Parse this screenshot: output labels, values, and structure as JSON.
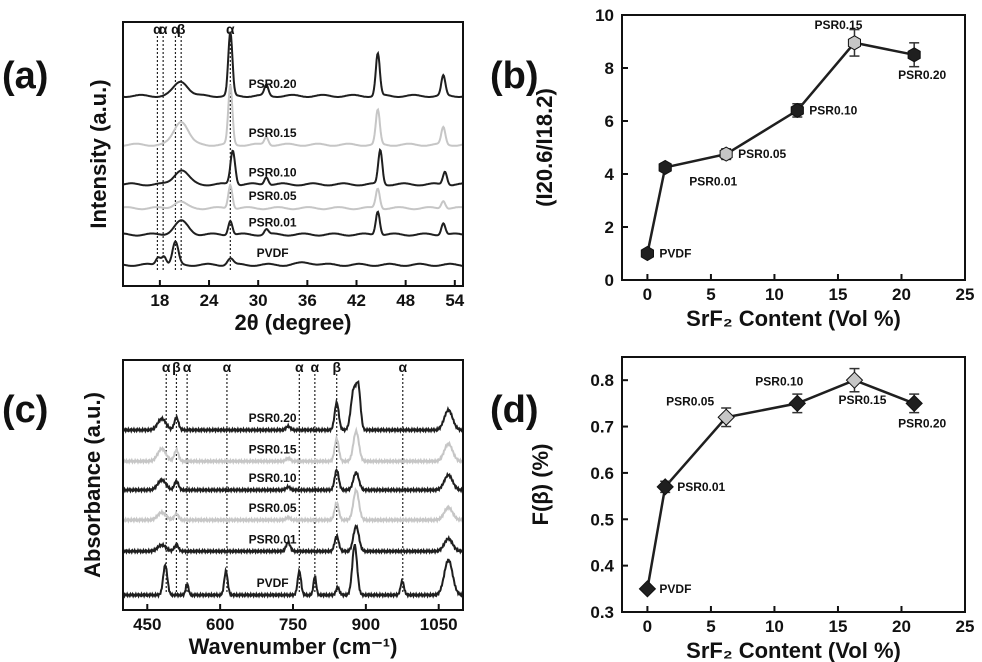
{
  "figure": {
    "panels": [
      {
        "id": "a",
        "label": "(a)"
      },
      {
        "id": "b",
        "label": "(b)"
      },
      {
        "id": "c",
        "label": "(c)"
      },
      {
        "id": "d",
        "label": "(d)"
      }
    ]
  },
  "colors": {
    "dark": "#1f1f1f",
    "light": "#c6c6c6",
    "axis": "#111111"
  },
  "chart_data": [
    {
      "id": "a",
      "type": "line",
      "title": "",
      "xlabel": "2θ (degree)",
      "ylabel": "Intensity (a.u.)",
      "xlim": [
        13.5,
        55
      ],
      "ylim": [
        0,
        10
      ],
      "x_ticks": [
        18,
        24,
        30,
        36,
        42,
        48,
        54
      ],
      "x_tick_labels": [
        "18",
        "24",
        "30",
        "36",
        "42",
        "48",
        "54"
      ],
      "series": [
        {
          "name": "PSR0.20",
          "color": "dark",
          "baseline": 7.2,
          "peaks": [
            [
              20.6,
              0.55,
              1.2
            ],
            [
              26.6,
              2.4,
              0.35
            ],
            [
              31.0,
              0.4,
              0.35
            ],
            [
              44.6,
              1.6,
              0.35
            ],
            [
              52.6,
              0.75,
              0.35
            ]
          ]
        },
        {
          "name": "PSR0.15",
          "color": "light",
          "baseline": 5.35,
          "peaks": [
            [
              20.6,
              0.9,
              1.2
            ],
            [
              26.6,
              2.25,
              0.35
            ],
            [
              31.0,
              0.3,
              0.35
            ],
            [
              44.6,
              1.3,
              0.35
            ],
            [
              52.6,
              0.65,
              0.35
            ]
          ]
        },
        {
          "name": "PSR0.10",
          "color": "dark",
          "baseline": 3.85,
          "peaks": [
            [
              20.6,
              0.55,
              1.2
            ],
            [
              26.9,
              1.3,
              0.4
            ],
            [
              31.0,
              0.3,
              0.35
            ],
            [
              44.9,
              1.3,
              0.35
            ],
            [
              52.8,
              0.5,
              0.35
            ]
          ]
        },
        {
          "name": "PSR0.05",
          "color": "light",
          "baseline": 2.95,
          "peaks": [
            [
              20.4,
              0.25,
              1.0
            ],
            [
              26.6,
              0.9,
              0.35
            ],
            [
              44.6,
              0.75,
              0.35
            ],
            [
              52.6,
              0.3,
              0.35
            ]
          ]
        },
        {
          "name": "PSR0.01",
          "color": "dark",
          "baseline": 1.95,
          "peaks": [
            [
              20.6,
              0.5,
              1.2
            ],
            [
              26.6,
              0.55,
              0.35
            ],
            [
              31.0,
              0.2,
              0.35
            ],
            [
              44.6,
              0.9,
              0.35
            ],
            [
              52.6,
              0.45,
              0.35
            ]
          ]
        },
        {
          "name": "PVDF",
          "color": "dark",
          "baseline": 0.8,
          "peaks": [
            [
              17.8,
              0.3,
              0.4
            ],
            [
              18.5,
              0.35,
              0.4
            ],
            [
              19.9,
              0.85,
              0.5
            ],
            [
              26.6,
              0.25,
              0.5
            ],
            [
              36.0,
              0.08,
              1.5
            ]
          ]
        }
      ],
      "phase_markers": [
        {
          "label": "α",
          "x": 17.7
        },
        {
          "label": "α",
          "x": 18.4
        },
        {
          "label": "α",
          "x": 19.9
        },
        {
          "label": "β",
          "x": 20.6
        },
        {
          "label": "α",
          "x": 26.6
        }
      ]
    },
    {
      "id": "b",
      "type": "scatter",
      "title": "",
      "xlabel": "SrF₂ Content (Vol %)",
      "ylabel": "(I20.6/I18.2)",
      "xlim": [
        -2,
        25
      ],
      "ylim": [
        0,
        10
      ],
      "x_ticks": [
        0,
        5,
        10,
        15,
        20,
        25
      ],
      "y_ticks": [
        0,
        2,
        4,
        6,
        8,
        10
      ],
      "points": [
        {
          "label": "PVDF",
          "x": 0,
          "y": 1.0,
          "err": 0.1,
          "color": "dark",
          "label_pos": "right"
        },
        {
          "label": "PSR0.01",
          "x": 1.4,
          "y": 4.25,
          "err": 0.15,
          "color": "dark",
          "label_pos": "below-right"
        },
        {
          "label": "PSR0.05",
          "x": 6.2,
          "y": 4.75,
          "err": 0.2,
          "color": "light",
          "label_pos": "right"
        },
        {
          "label": "PSR0.10",
          "x": 11.8,
          "y": 6.4,
          "err": 0.25,
          "color": "dark",
          "label_pos": "right"
        },
        {
          "label": "PSR0.15",
          "x": 16.3,
          "y": 8.95,
          "err": 0.5,
          "color": "light",
          "label_pos": "above-left"
        },
        {
          "label": "PSR0.20",
          "x": 21.0,
          "y": 8.5,
          "err": 0.45,
          "color": "dark",
          "label_pos": "below"
        }
      ]
    },
    {
      "id": "c",
      "type": "line",
      "title": "",
      "xlabel": "Wavenumber (cm⁻¹)",
      "ylabel": "Absorbance (a.u.)",
      "xlim": [
        400,
        1100
      ],
      "ylim": [
        0,
        10
      ],
      "x_ticks": [
        450,
        600,
        750,
        900,
        1050
      ],
      "x_tick_labels": [
        "450",
        "600",
        "750",
        "900",
        "1050"
      ],
      "series": [
        {
          "name": "PSR0.20",
          "color": "dark",
          "baseline": 7.2,
          "peaks": [
            [
              480,
              0.45,
              12
            ],
            [
              510,
              0.5,
              6
            ],
            [
              740,
              0.15,
              6
            ],
            [
              840,
              1.1,
              6
            ],
            [
              875,
              1.6,
              8
            ],
            [
              885,
              1.5,
              6
            ],
            [
              1070,
              0.8,
              12
            ]
          ]
        },
        {
          "name": "PSR0.15",
          "color": "light",
          "baseline": 5.95,
          "peaks": [
            [
              480,
              0.5,
              12
            ],
            [
              510,
              0.45,
              6
            ],
            [
              740,
              0.12,
              6
            ],
            [
              840,
              0.9,
              6
            ],
            [
              880,
              1.2,
              8
            ],
            [
              1070,
              0.7,
              12
            ]
          ]
        },
        {
          "name": "PSR0.10",
          "color": "dark",
          "baseline": 4.8,
          "peaks": [
            [
              480,
              0.4,
              12
            ],
            [
              510,
              0.35,
              6
            ],
            [
              740,
              0.12,
              6
            ],
            [
              840,
              0.8,
              6
            ],
            [
              880,
              0.7,
              8
            ],
            [
              1070,
              0.6,
              12
            ]
          ]
        },
        {
          "name": "PSR0.05",
          "color": "light",
          "baseline": 3.6,
          "peaks": [
            [
              480,
              0.3,
              12
            ],
            [
              510,
              0.25,
              6
            ],
            [
              740,
              0.1,
              6
            ],
            [
              840,
              0.7,
              6
            ],
            [
              880,
              1.2,
              8
            ],
            [
              1070,
              0.5,
              12
            ]
          ]
        },
        {
          "name": "PSR0.01",
          "color": "dark",
          "baseline": 2.35,
          "peaks": [
            [
              480,
              0.25,
              12
            ],
            [
              510,
              0.25,
              6
            ],
            [
              740,
              0.35,
              6
            ],
            [
              840,
              0.6,
              6
            ],
            [
              880,
              1.0,
              8
            ],
            [
              1070,
              0.5,
              12
            ]
          ]
        },
        {
          "name": "PVDF",
          "color": "dark",
          "baseline": 0.6,
          "peaks": [
            [
              487,
              1.2,
              6
            ],
            [
              532,
              0.45,
              4
            ],
            [
              612,
              0.95,
              5
            ],
            [
              763,
              0.95,
              5
            ],
            [
              795,
              0.75,
              4
            ],
            [
              842,
              0.3,
              5
            ],
            [
              877,
              2.0,
              7
            ],
            [
              975,
              0.55,
              5
            ],
            [
              1070,
              1.4,
              12
            ]
          ]
        }
      ],
      "phase_markers": [
        {
          "label": "α",
          "x": 489
        },
        {
          "label": "β",
          "x": 510
        },
        {
          "label": "α",
          "x": 532
        },
        {
          "label": "α",
          "x": 614
        },
        {
          "label": "α",
          "x": 763
        },
        {
          "label": "α",
          "x": 795
        },
        {
          "label": "β",
          "x": 840
        },
        {
          "label": "α",
          "x": 976
        }
      ]
    },
    {
      "id": "d",
      "type": "scatter",
      "title": "",
      "xlabel": "SrF₂ Content (Vol %)",
      "ylabel": "F(β) (%)",
      "xlim": [
        -2,
        25
      ],
      "ylim": [
        0.3,
        0.85
      ],
      "x_ticks": [
        0,
        5,
        10,
        15,
        20,
        25
      ],
      "y_ticks": [
        0.3,
        0.4,
        0.5,
        0.6,
        0.7,
        0.8
      ],
      "y_tick_labels": [
        "0.3",
        "0.4",
        "0.5",
        "0.6",
        "0.7",
        "0.8"
      ],
      "points": [
        {
          "label": "PVDF",
          "x": 0,
          "y": 0.35,
          "err": 0.0,
          "color": "dark",
          "label_pos": "right"
        },
        {
          "label": "PSR0.01",
          "x": 1.4,
          "y": 0.57,
          "err": 0.012,
          "color": "dark",
          "label_pos": "right"
        },
        {
          "label": "PSR0.05",
          "x": 6.2,
          "y": 0.72,
          "err": 0.02,
          "color": "light",
          "label_pos": "above-left"
        },
        {
          "label": "PSR0.10",
          "x": 11.8,
          "y": 0.75,
          "err": 0.02,
          "color": "dark",
          "label_pos": "above"
        },
        {
          "label": "PSR0.15",
          "x": 16.3,
          "y": 0.8,
          "err": 0.025,
          "color": "light",
          "label_pos": "below"
        },
        {
          "label": "PSR0.20",
          "x": 21.0,
          "y": 0.75,
          "err": 0.02,
          "color": "dark",
          "label_pos": "below"
        }
      ]
    }
  ]
}
